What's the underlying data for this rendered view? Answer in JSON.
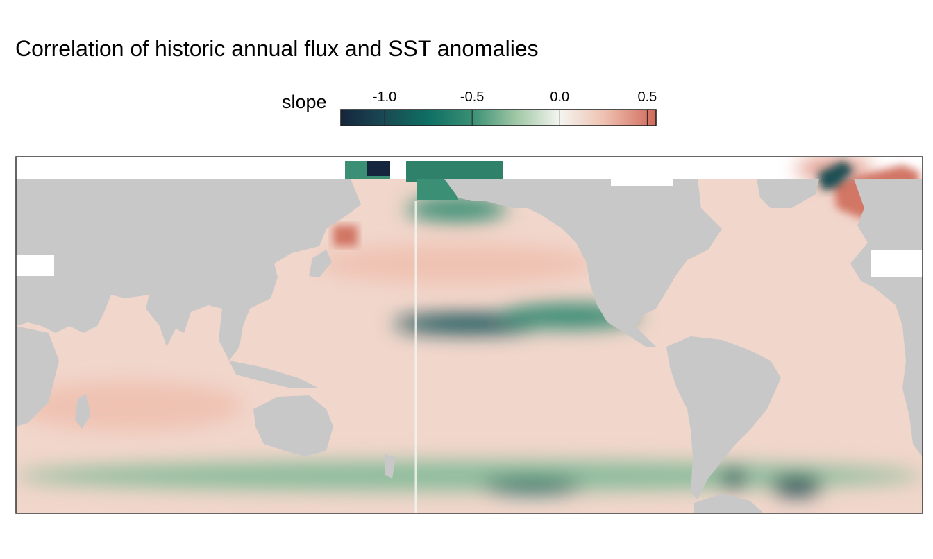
{
  "chart_data": {
    "type": "heatmap",
    "title": "Correlation of historic annual flux and SST anomalies",
    "legend": {
      "title": "slope",
      "placement": "top",
      "range": [
        -1.25,
        0.55
      ],
      "ticks": [
        "-1.0",
        "-0.5",
        "0.0",
        "0.5"
      ],
      "tick_values": [
        -1.0,
        -0.5,
        0.0,
        0.5
      ],
      "colormap": [
        {
          "v": -1.25,
          "c": "#14253d"
        },
        {
          "v": -1.0,
          "c": "#1a4a53"
        },
        {
          "v": -0.75,
          "c": "#0e6f63"
        },
        {
          "v": -0.5,
          "c": "#3a8f74"
        },
        {
          "v": -0.25,
          "c": "#9fc7a5"
        },
        {
          "v": 0.0,
          "c": "#f4f5f0"
        },
        {
          "v": 0.25,
          "c": "#efc2b2"
        },
        {
          "v": 0.55,
          "c": "#d0695a"
        }
      ]
    },
    "map": {
      "land_color": "#c8c8c8",
      "missing_color": "#ffffff",
      "frame_color": "#333333",
      "x_range": [
        20,
        380
      ],
      "y_range": [
        -78,
        65
      ],
      "regions": [
        {
          "kind": "ocean",
          "slope": 0.15,
          "lon_range": [
            20,
            380
          ],
          "lat_range": [
            -78,
            65
          ]
        },
        {
          "kind": "field",
          "slope": -0.95,
          "lon": 200,
          "lat": -2,
          "sx": 30,
          "sy": 4
        },
        {
          "kind": "field",
          "slope": -0.55,
          "lon": 240,
          "lat": 1,
          "sx": 28,
          "sy": 5
        },
        {
          "kind": "field",
          "slope": -0.5,
          "lon": 195,
          "lat": 44,
          "sx": 20,
          "sy": 5
        },
        {
          "kind": "field",
          "slope": -0.3,
          "lon": 200,
          "lat": -63,
          "sx": 180,
          "sy": 6
        },
        {
          "kind": "field",
          "slope": -0.8,
          "lon": 225,
          "lat": -67,
          "sx": 20,
          "sy": 3
        },
        {
          "kind": "field",
          "slope": -1.0,
          "lon": 330,
          "lat": -67,
          "sx": 10,
          "sy": 4
        },
        {
          "kind": "field",
          "slope": -0.9,
          "lon": 305,
          "lat": -64,
          "sx": 5,
          "sy": 4
        },
        {
          "kind": "field",
          "slope": 0.4,
          "lon": 345,
          "lat": 60,
          "sx": 15,
          "sy": 5
        },
        {
          "kind": "field",
          "slope": 0.25,
          "lon": 65,
          "lat": -35,
          "sx": 45,
          "sy": 10
        },
        {
          "kind": "field",
          "slope": 0.25,
          "lon": 195,
          "lat": 22,
          "sx": 55,
          "sy": 8
        }
      ]
    }
  }
}
